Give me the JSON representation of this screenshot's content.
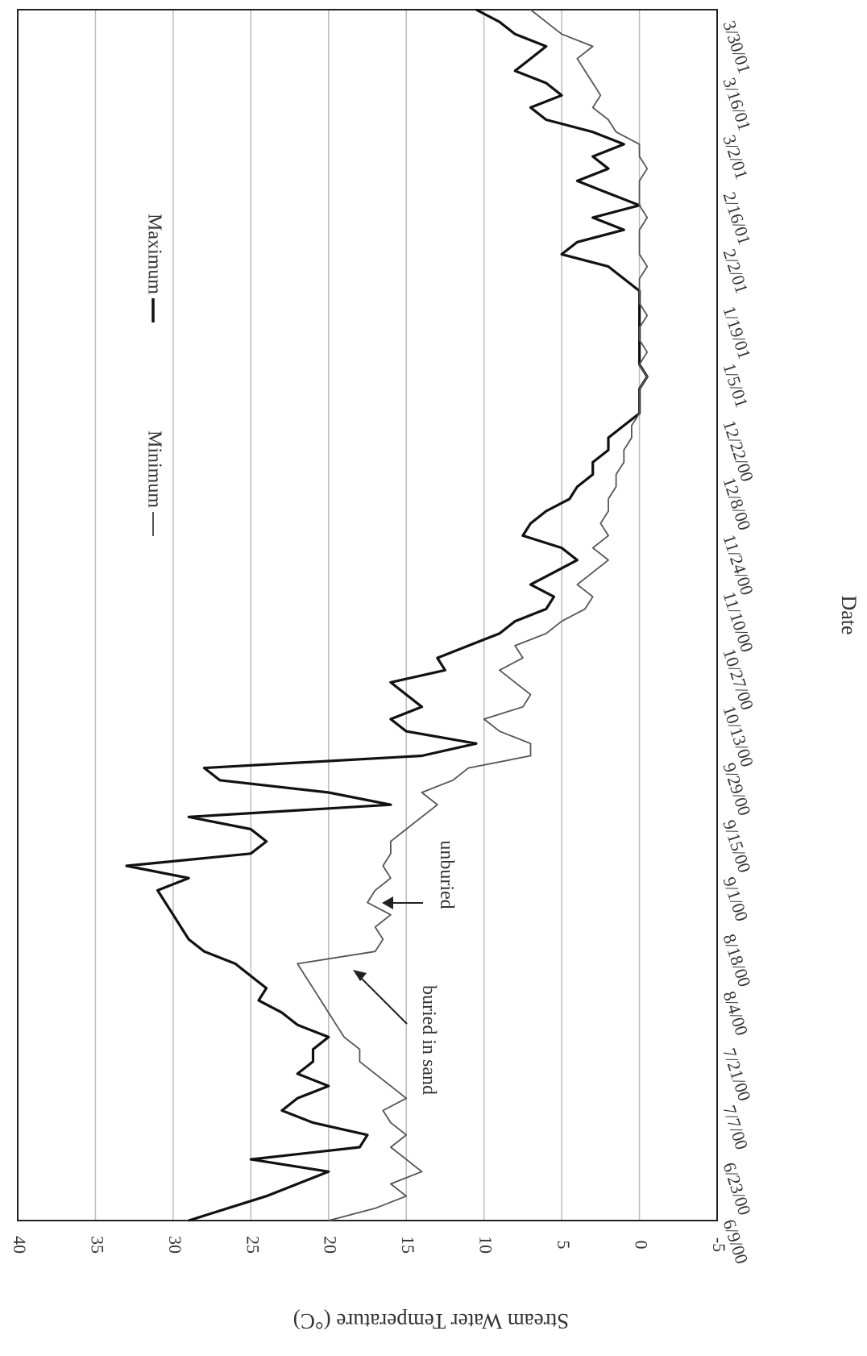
{
  "chart_data": {
    "type": "line",
    "ylabel": "Stream Water Temperature (°C)",
    "xlabel": "Date",
    "ylim": [
      -5,
      40
    ],
    "yticks": [
      40,
      35,
      30,
      25,
      20,
      15,
      10,
      5,
      0,
      -5
    ],
    "grid": true,
    "legend_position": "top-right",
    "x_tick_labels": [
      "6/9/00",
      "6/23/00",
      "7/7/00",
      "7/21/00",
      "8/4/00",
      "8/18/00",
      "9/1/00",
      "9/15/00",
      "9/29/00",
      "10/13/00",
      "10/27/00",
      "11/10/00",
      "11/24/00",
      "12/8/00",
      "12/22/00",
      "1/5/01",
      "1/19/01",
      "2/2/01",
      "2/16/01",
      "3/2/01",
      "3/16/01",
      "3/30/01"
    ],
    "annotations": [
      {
        "text": "buried in sand",
        "x": "7/28/00",
        "y": 17.5
      },
      {
        "text": "unburied",
        "x": "8/18/00",
        "y": 16.5
      }
    ],
    "series": [
      {
        "name": "Maximum",
        "x": [
          "6/9/00",
          "6/12/00",
          "6/15/00",
          "6/18/00",
          "6/21/00",
          "6/24/00",
          "6/27/00",
          "6/30/00",
          "7/3/00",
          "7/6/00",
          "7/9/00",
          "7/12/00",
          "7/15/00",
          "7/18/00",
          "7/21/00",
          "7/24/00",
          "7/27/00",
          "7/30/00",
          "8/2/00",
          "8/5/00",
          "8/8/00",
          "8/11/00",
          "8/14/00",
          "8/17/00",
          "8/20/00",
          "8/23/00",
          "8/26/00",
          "8/29/00",
          "9/1/00",
          "9/4/00",
          "9/7/00",
          "9/10/00",
          "9/13/00",
          "9/16/00",
          "9/19/00",
          "9/22/00",
          "9/25/00",
          "9/28/00",
          "10/1/00",
          "10/4/00",
          "10/7/00",
          "10/10/00",
          "10/13/00",
          "10/16/00",
          "10/19/00",
          "10/22/00",
          "10/25/00",
          "10/28/00",
          "10/31/00",
          "11/3/00",
          "11/6/00",
          "11/9/00",
          "11/12/00",
          "11/15/00",
          "11/18/00",
          "11/21/00",
          "11/24/00",
          "11/27/00",
          "11/30/00",
          "12/3/00",
          "12/6/00",
          "12/9/00",
          "12/12/00",
          "12/15/00",
          "12/18/00",
          "12/21/00",
          "12/24/00",
          "12/27/00",
          "12/30/00",
          "1/2/01",
          "1/5/01",
          "1/8/01",
          "1/11/01",
          "1/14/01",
          "1/17/01",
          "1/20/01",
          "1/23/01",
          "1/26/01",
          "1/29/01",
          "2/1/01",
          "2/4/01",
          "2/7/01",
          "2/10/01",
          "2/13/01",
          "2/16/01",
          "2/19/01",
          "2/22/01",
          "2/25/01",
          "2/28/01",
          "3/3/01",
          "3/6/01",
          "3/9/01",
          "3/12/01",
          "3/15/01",
          "3/18/01",
          "3/21/01",
          "3/24/01",
          "3/27/01",
          "3/30/01",
          "4/2/01"
        ],
        "y": [
          29,
          26.5,
          24,
          22,
          20,
          25,
          18,
          17.5,
          21,
          23,
          22,
          20,
          22,
          21,
          21,
          20,
          22,
          23,
          24.5,
          24,
          25,
          26,
          28,
          29,
          29.5,
          30,
          30.5,
          31,
          29,
          33,
          25,
          24,
          25,
          29,
          16,
          20,
          27,
          28,
          14,
          10.5,
          15,
          16,
          14,
          15,
          16,
          12.5,
          13,
          11,
          9,
          8,
          6,
          5.5,
          7,
          5.5,
          4,
          5,
          7.5,
          7,
          6,
          4.5,
          4,
          3,
          3,
          2,
          2,
          1,
          0,
          0,
          0,
          -0.5,
          0,
          0,
          0,
          0,
          0,
          0,
          0,
          1,
          2,
          5,
          4,
          1,
          3,
          0,
          2,
          4,
          2,
          3,
          1,
          3,
          6,
          7,
          5,
          6,
          8,
          7,
          6,
          8,
          9,
          10.5
        ]
      },
      {
        "name": "Minimum",
        "x": [
          "6/9/00",
          "6/12/00",
          "6/15/00",
          "6/18/00",
          "6/21/00",
          "6/24/00",
          "6/27/00",
          "6/30/00",
          "7/3/00",
          "7/6/00",
          "7/9/00",
          "7/12/00",
          "7/15/00",
          "7/18/00",
          "7/21/00",
          "7/24/00",
          "7/27/00",
          "7/30/00",
          "8/2/00",
          "8/5/00",
          "8/8/00",
          "8/11/00",
          "8/14/00",
          "8/17/00",
          "8/20/00",
          "8/23/00",
          "8/26/00",
          "8/29/00",
          "9/1/00",
          "9/4/00",
          "9/7/00",
          "9/10/00",
          "9/13/00",
          "9/16/00",
          "9/19/00",
          "9/22/00",
          "9/25/00",
          "9/28/00",
          "10/1/00",
          "10/4/00",
          "10/7/00",
          "10/10/00",
          "10/13/00",
          "10/16/00",
          "10/19/00",
          "10/22/00",
          "10/25/00",
          "10/28/00",
          "10/31/00",
          "11/3/00",
          "11/6/00",
          "11/9/00",
          "11/12/00",
          "11/15/00",
          "11/18/00",
          "11/21/00",
          "11/24/00",
          "11/27/00",
          "11/30/00",
          "12/3/00",
          "12/6/00",
          "12/9/00",
          "12/12/00",
          "12/15/00",
          "12/18/00",
          "12/21/00",
          "12/24/00",
          "12/27/00",
          "12/30/00",
          "1/2/01",
          "1/5/01",
          "1/8/01",
          "1/11/01",
          "1/14/01",
          "1/17/01",
          "1/20/01",
          "1/23/01",
          "1/26/01",
          "1/29/01",
          "2/1/01",
          "2/4/01",
          "2/7/01",
          "2/10/01",
          "2/13/01",
          "2/16/01",
          "2/19/01",
          "2/22/01",
          "2/25/01",
          "2/28/01",
          "3/3/01",
          "3/6/01",
          "3/9/01",
          "3/12/01",
          "3/15/01",
          "3/18/01",
          "3/21/01",
          "3/24/01",
          "3/27/01",
          "3/30/01",
          "4/2/01"
        ],
        "y": [
          20,
          17,
          15,
          16,
          14,
          15,
          16,
          15,
          16,
          16.5,
          15,
          16,
          17,
          18,
          18,
          19,
          19.5,
          20,
          20.5,
          21,
          21.5,
          22,
          17,
          16.5,
          17,
          16,
          17.5,
          17,
          16,
          16.5,
          16,
          16,
          15,
          14,
          13,
          14,
          12,
          11,
          7,
          7,
          9,
          10,
          7.5,
          7,
          8,
          9,
          7.5,
          8,
          6,
          5,
          3.5,
          3,
          4,
          3,
          2,
          3,
          2,
          2.5,
          2,
          2,
          1.5,
          1.5,
          1,
          1,
          0.5,
          0.5,
          0,
          0,
          0,
          -0.5,
          0,
          -0.5,
          0,
          0,
          -0.5,
          0,
          0,
          0,
          -0.5,
          0,
          0,
          0,
          -0.5,
          0,
          0,
          0,
          -0.5,
          0,
          0,
          1.5,
          2,
          3,
          2.5,
          3,
          3.5,
          4,
          3,
          5,
          6,
          7
        ]
      }
    ]
  }
}
